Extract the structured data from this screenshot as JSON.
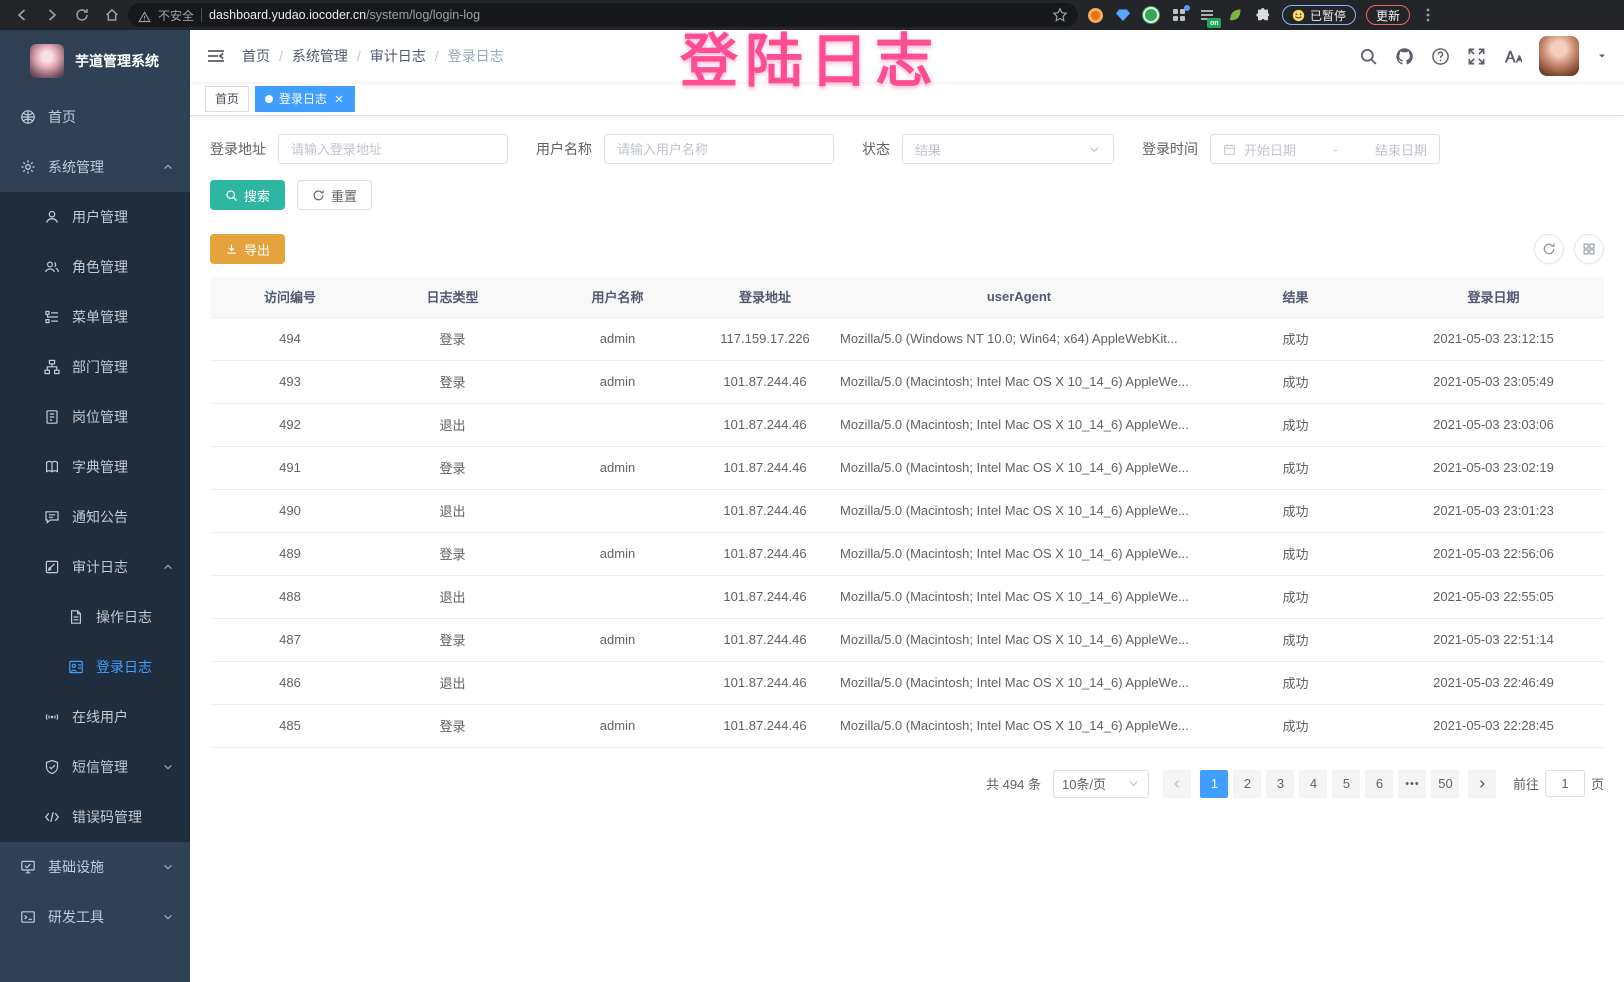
{
  "colors": {
    "accent": "#409eff",
    "search_button": "#2db7a3",
    "export_button": "#e6a23c",
    "overlay_pink": "#ff4d94",
    "sidebar_bg": "#304156",
    "submenu_bg": "#1f2d3d"
  },
  "browser": {
    "security_label": "不安全",
    "url_host": "dashboard.yudao.iocoder.cn",
    "url_path": "/system/log/login-log",
    "paused_label": "已暂停",
    "update_label": "更新",
    "list_badge": "on"
  },
  "overlay": {
    "text": "登陆日志"
  },
  "sidebar": {
    "title": "芋道管理系统",
    "items": [
      {
        "id": "home",
        "label": "首页",
        "icon": "dashboard-icon",
        "depth": 0,
        "submenu": false
      },
      {
        "id": "system-management",
        "label": "系统管理",
        "icon": "gear-icon",
        "depth": 0,
        "submenu": false,
        "arrow": "up"
      },
      {
        "id": "user-management",
        "label": "用户管理",
        "icon": "user-icon",
        "depth": 1,
        "submenu": true
      },
      {
        "id": "role-management",
        "label": "角色管理",
        "icon": "users-icon",
        "depth": 1,
        "submenu": true
      },
      {
        "id": "menu-management",
        "label": "菜单管理",
        "icon": "menu-tree-icon",
        "depth": 1,
        "submenu": true
      },
      {
        "id": "dept-management",
        "label": "部门管理",
        "icon": "org-tree-icon",
        "depth": 1,
        "submenu": true
      },
      {
        "id": "post-management",
        "label": "岗位管理",
        "icon": "badge-icon",
        "depth": 1,
        "submenu": true
      },
      {
        "id": "dict-management",
        "label": "字典管理",
        "icon": "dict-icon",
        "depth": 1,
        "submenu": true
      },
      {
        "id": "notice-announcement",
        "label": "通知公告",
        "icon": "announcement-icon",
        "depth": 1,
        "submenu": true
      },
      {
        "id": "audit-log",
        "label": "审计日志",
        "icon": "audit-log-icon",
        "depth": 1,
        "submenu": true,
        "arrow": "up"
      },
      {
        "id": "operation-log",
        "label": "操作日志",
        "icon": "operation-log-icon",
        "depth": 2,
        "submenu": true
      },
      {
        "id": "login-log",
        "label": "登录日志",
        "icon": "login-log-icon",
        "depth": 2,
        "submenu": true,
        "active": true
      },
      {
        "id": "online-users",
        "label": "在线用户",
        "icon": "online-user-icon",
        "depth": 1,
        "submenu": true
      },
      {
        "id": "sms-management",
        "label": "短信管理",
        "icon": "sms-shield-icon",
        "depth": 1,
        "submenu": true,
        "arrow": "down"
      },
      {
        "id": "error-code-management",
        "label": "错误码管理",
        "icon": "error-code-icon",
        "depth": 1,
        "submenu": true
      },
      {
        "id": "infrastructure",
        "label": "基础设施",
        "icon": "infrastructure-icon",
        "depth": 0,
        "submenu": false,
        "arrow": "down"
      },
      {
        "id": "dev-tools",
        "label": "研发工具",
        "icon": "devtools-icon",
        "depth": 0,
        "submenu": false,
        "arrow": "down"
      }
    ]
  },
  "breadcrumb": {
    "separator": "/",
    "items": [
      "首页",
      "系统管理",
      "审计日志",
      "登录日志"
    ]
  },
  "tags": [
    {
      "label": "首页",
      "active": false,
      "closable": false
    },
    {
      "label": "登录日志",
      "active": true,
      "closable": true
    }
  ],
  "filters": {
    "login_address": {
      "label": "登录地址",
      "placeholder": "请输入登录地址"
    },
    "username": {
      "label": "用户名称",
      "placeholder": "请输入用户名称"
    },
    "status": {
      "label": "状态",
      "placeholder": "结果"
    },
    "login_time": {
      "label": "登录时间",
      "start_placeholder": "开始日期",
      "separator": "-",
      "end_placeholder": "结束日期"
    },
    "search_label": "搜索",
    "reset_label": "重置"
  },
  "toolbar": {
    "export_label": "导出"
  },
  "table": {
    "headers": [
      "访问编号",
      "日志类型",
      "用户名称",
      "登录地址",
      "userAgent",
      "结果",
      "登录日期"
    ],
    "rows": [
      [
        "494",
        "登录",
        "admin",
        "117.159.17.226",
        "Mozilla/5.0 (Windows NT 10.0; Win64; x64) AppleWebKit...",
        "成功",
        "2021-05-03 23:12:15"
      ],
      [
        "493",
        "登录",
        "admin",
        "101.87.244.46",
        "Mozilla/5.0 (Macintosh; Intel Mac OS X 10_14_6) AppleWe...",
        "成功",
        "2021-05-03 23:05:49"
      ],
      [
        "492",
        "退出",
        "",
        "101.87.244.46",
        "Mozilla/5.0 (Macintosh; Intel Mac OS X 10_14_6) AppleWe...",
        "成功",
        "2021-05-03 23:03:06"
      ],
      [
        "491",
        "登录",
        "admin",
        "101.87.244.46",
        "Mozilla/5.0 (Macintosh; Intel Mac OS X 10_14_6) AppleWe...",
        "成功",
        "2021-05-03 23:02:19"
      ],
      [
        "490",
        "退出",
        "",
        "101.87.244.46",
        "Mozilla/5.0 (Macintosh; Intel Mac OS X 10_14_6) AppleWe...",
        "成功",
        "2021-05-03 23:01:23"
      ],
      [
        "489",
        "登录",
        "admin",
        "101.87.244.46",
        "Mozilla/5.0 (Macintosh; Intel Mac OS X 10_14_6) AppleWe...",
        "成功",
        "2021-05-03 22:56:06"
      ],
      [
        "488",
        "退出",
        "",
        "101.87.244.46",
        "Mozilla/5.0 (Macintosh; Intel Mac OS X 10_14_6) AppleWe...",
        "成功",
        "2021-05-03 22:55:05"
      ],
      [
        "487",
        "登录",
        "admin",
        "101.87.244.46",
        "Mozilla/5.0 (Macintosh; Intel Mac OS X 10_14_6) AppleWe...",
        "成功",
        "2021-05-03 22:51:14"
      ],
      [
        "486",
        "退出",
        "",
        "101.87.244.46",
        "Mozilla/5.0 (Macintosh; Intel Mac OS X 10_14_6) AppleWe...",
        "成功",
        "2021-05-03 22:46:49"
      ],
      [
        "485",
        "登录",
        "admin",
        "101.87.244.46",
        "Mozilla/5.0 (Macintosh; Intel Mac OS X 10_14_6) AppleWe...",
        "成功",
        "2021-05-03 22:28:45"
      ]
    ]
  },
  "pagination": {
    "total_text": "共 494 条",
    "page_size": "10条/页",
    "pages": [
      {
        "label": "1",
        "active": true
      },
      {
        "label": "2",
        "active": false
      },
      {
        "label": "3",
        "active": false
      },
      {
        "label": "4",
        "active": false
      },
      {
        "label": "5",
        "active": false
      },
      {
        "label": "6",
        "active": false
      },
      {
        "label": "•••",
        "active": false,
        "ellipsis": true
      },
      {
        "label": "50",
        "active": false
      }
    ],
    "goto_label": "前往",
    "goto_value": "1",
    "page_suffix": "页"
  }
}
